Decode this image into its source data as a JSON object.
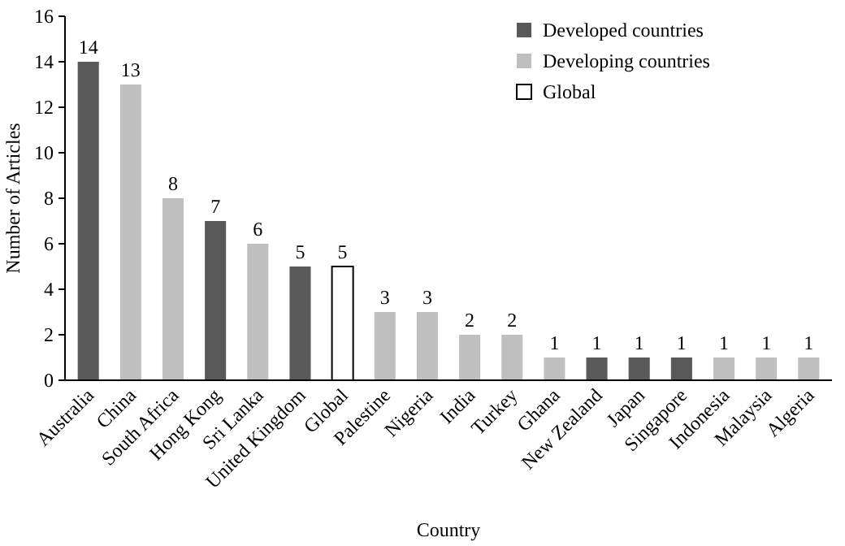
{
  "chart_data": {
    "type": "bar",
    "xlabel": "Country",
    "ylabel": "Number of Articles",
    "categories": [
      "Australia",
      "China",
      "South Africa",
      "Hong Kong",
      "Sri Lanka",
      "United Kingdom",
      "Global",
      "Palestine",
      "Nigeria",
      "India",
      "Turkey",
      "Ghana",
      "New Zealand",
      "Japan",
      "Singapore",
      "Indonesia",
      "Malaysia",
      "Algeria"
    ],
    "series": [
      {
        "name": "Developed countries",
        "color": "#595959",
        "values": [
          14,
          null,
          null,
          7,
          null,
          5,
          null,
          null,
          null,
          null,
          null,
          null,
          1,
          1,
          1,
          null,
          null,
          null
        ]
      },
      {
        "name": "Developing countries",
        "color": "#bfbfbf",
        "values": [
          null,
          13,
          8,
          null,
          6,
          null,
          null,
          3,
          3,
          2,
          2,
          1,
          null,
          null,
          null,
          1,
          1,
          1
        ]
      },
      {
        "name": "Global",
        "color": "#ffffff",
        "values": [
          null,
          null,
          null,
          null,
          null,
          null,
          5,
          null,
          null,
          null,
          null,
          null,
          null,
          null,
          null,
          null,
          null,
          null
        ]
      }
    ],
    "ylim": [
      0,
      16
    ],
    "yticks": [
      0,
      2,
      4,
      6,
      8,
      10,
      12,
      14,
      16
    ],
    "grid": false,
    "legend": "top right",
    "data_labels": true
  }
}
